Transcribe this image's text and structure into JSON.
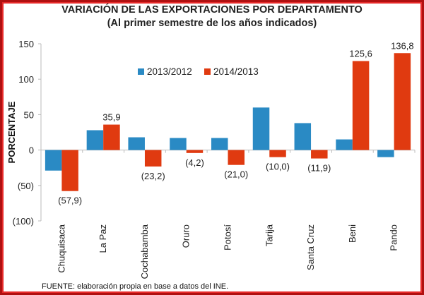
{
  "chart_data": {
    "type": "bar",
    "title": "VARIACIÓN DE LAS EXPORTACIONES POR DEPARTAMENTO",
    "subtitle": "(Al primer semestre de los años indicados)",
    "xlabel": "",
    "ylabel": "PORCENTAJE",
    "ylim": [
      -100,
      150
    ],
    "yticks": [
      150,
      100,
      50,
      0,
      -50,
      -100
    ],
    "ytick_labels": [
      "150",
      "100",
      "50",
      "0",
      "(50)",
      "(100)"
    ],
    "grid": false,
    "legend_position": "top-left-inside",
    "categories": [
      "Chuquisaca",
      "La Paz",
      "Cochabamba",
      "Oruro",
      "Potosí",
      "Tarija",
      "Santa Cruz",
      "Beni",
      "Pando"
    ],
    "series": [
      {
        "name": "2013/2012",
        "color": "#2a8ac4",
        "values": [
          -29,
          28,
          18,
          17,
          17,
          60,
          38,
          15,
          -10
        ],
        "labels": [
          null,
          null,
          null,
          null,
          null,
          null,
          null,
          null,
          null
        ]
      },
      {
        "name": "2014/2013",
        "color": "#e03a10",
        "values": [
          -57.9,
          35.9,
          -23.2,
          -4.2,
          -21.0,
          -10.0,
          -11.9,
          125.6,
          136.8
        ],
        "labels": [
          "(57,9)",
          "35,9",
          "(23,2)",
          "(4,2)",
          "(21,0)",
          "(10,0)",
          "(11,9)",
          "125,6",
          "136,8"
        ]
      }
    ]
  },
  "source": "FUENTE: elaboración propia en base a datos del INE."
}
